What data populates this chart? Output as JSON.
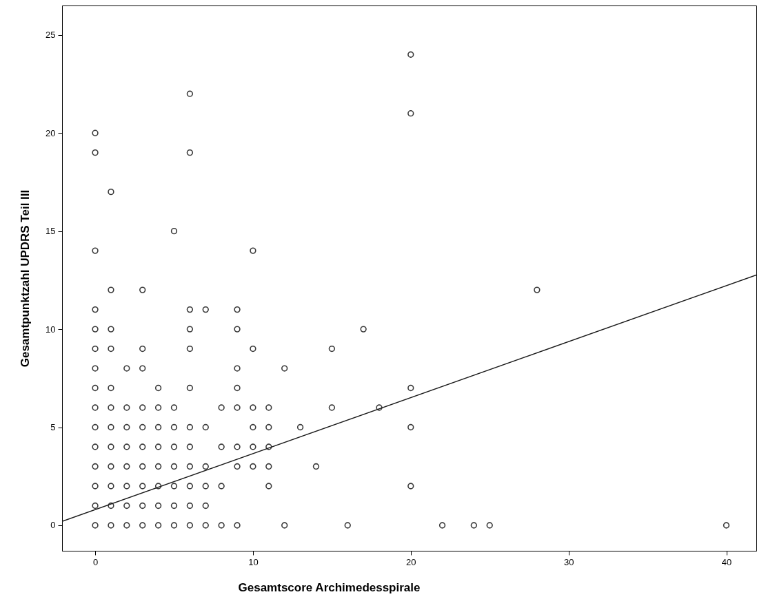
{
  "chart_data": {
    "type": "scatter",
    "xlabel": "Gesamtscore Archimedesspirale",
    "ylabel": "Gesamtpunktzahl UPDRS Teil III",
    "xlim": [
      -2.1,
      41.9
    ],
    "ylim": [
      -1.3,
      26.5
    ],
    "xticks": [
      0,
      10,
      20,
      30,
      40
    ],
    "yticks": [
      0,
      5,
      10,
      15,
      20,
      25
    ],
    "grid": false,
    "series": [
      {
        "color": "#3a3a3a",
        "marker": "circle",
        "x": [
          0,
          1,
          2,
          3,
          4,
          5,
          6,
          7,
          8,
          9,
          12,
          16,
          22,
          24,
          25,
          40,
          0,
          1,
          2,
          3,
          4,
          5,
          6,
          7,
          0,
          1,
          2,
          3,
          4,
          5,
          6,
          7,
          8,
          11,
          20,
          0,
          1,
          2,
          3,
          4,
          5,
          6,
          7,
          9,
          10,
          11,
          14,
          0,
          1,
          2,
          3,
          4,
          5,
          6,
          8,
          9,
          10,
          11,
          0,
          1,
          2,
          3,
          4,
          5,
          6,
          7,
          10,
          11,
          13,
          20,
          0,
          1,
          2,
          3,
          4,
          5,
          8,
          9,
          10,
          11,
          15,
          18,
          0,
          1,
          4,
          6,
          9,
          20,
          0,
          2,
          3,
          9,
          12,
          0,
          1,
          3,
          6,
          10,
          15,
          0,
          1,
          6,
          9,
          17,
          0,
          6,
          7,
          9,
          1,
          3,
          28,
          0,
          10,
          5,
          1,
          0,
          6,
          0,
          20,
          6,
          20
        ],
        "values": [
          0,
          0,
          0,
          0,
          0,
          0,
          0,
          0,
          0,
          0,
          0,
          0,
          0,
          0,
          0,
          0,
          1,
          1,
          1,
          1,
          1,
          1,
          1,
          1,
          2,
          2,
          2,
          2,
          2,
          2,
          2,
          2,
          2,
          2,
          2,
          3,
          3,
          3,
          3,
          3,
          3,
          3,
          3,
          3,
          3,
          3,
          3,
          4,
          4,
          4,
          4,
          4,
          4,
          4,
          4,
          4,
          4,
          4,
          5,
          5,
          5,
          5,
          5,
          5,
          5,
          5,
          5,
          5,
          5,
          5,
          6,
          6,
          6,
          6,
          6,
          6,
          6,
          6,
          6,
          6,
          6,
          6,
          7,
          7,
          7,
          7,
          7,
          7,
          8,
          8,
          8,
          8,
          8,
          9,
          9,
          9,
          9,
          9,
          9,
          10,
          10,
          10,
          10,
          10,
          11,
          11,
          11,
          11,
          12,
          12,
          12,
          14,
          14,
          15,
          17,
          19,
          19,
          20,
          21,
          22,
          24
        ]
      },
      {
        "type": "line",
        "color": "#1a1a1a",
        "line_style": "solid",
        "marker": "none",
        "x": [
          -2.1,
          41.9
        ],
        "values": [
          0.2,
          12.76
        ]
      }
    ]
  }
}
